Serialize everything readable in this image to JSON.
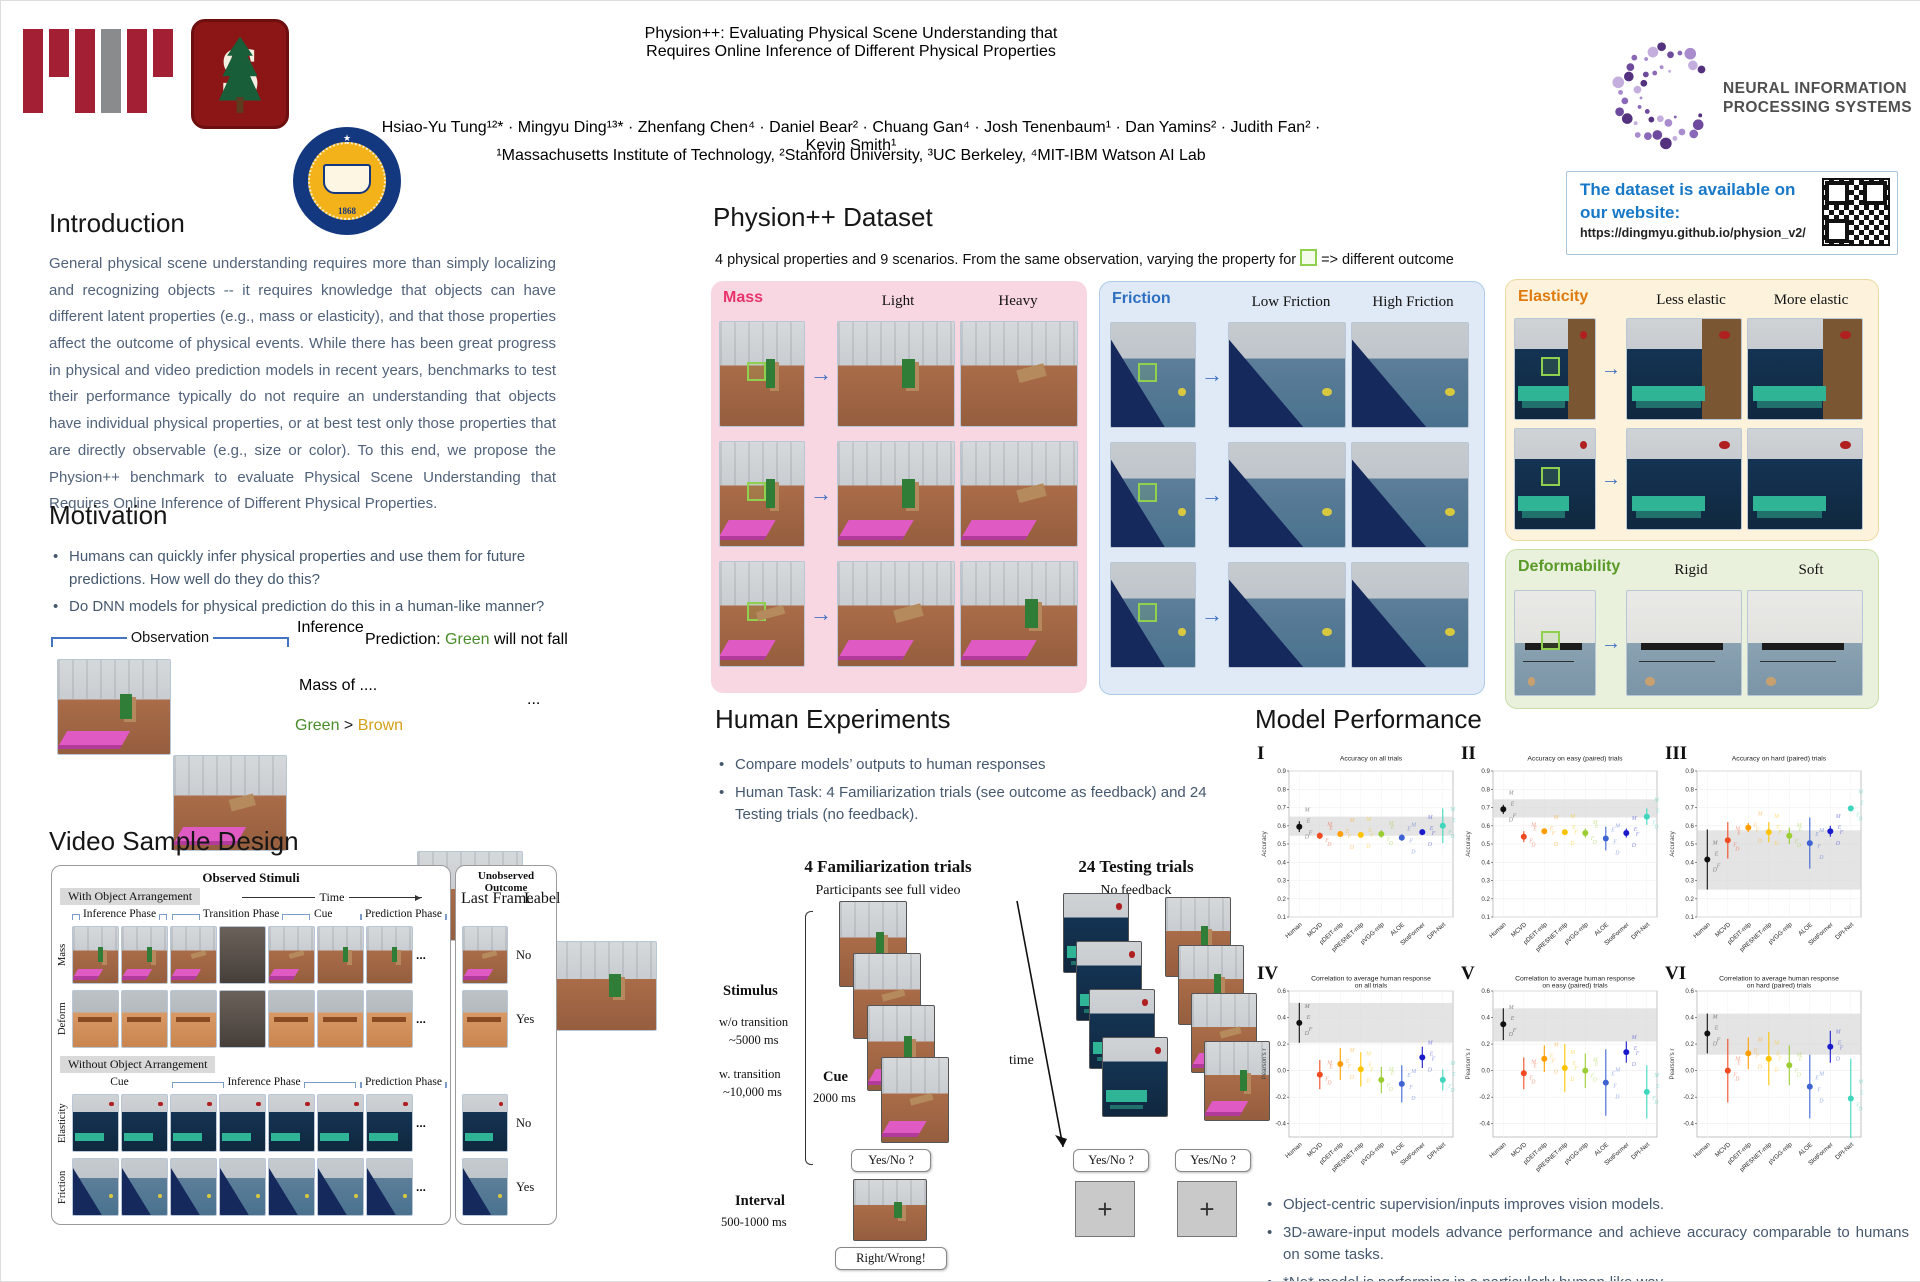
{
  "icons": {
    "arrow_right": "→",
    "star": "★"
  },
  "misc": {
    "ellipsis": "..."
  },
  "header": {
    "title_line1": "Physion++: Evaluating Physical Scene Understanding that",
    "title_line2": "Requires Online Inference of Different Physical Properties",
    "authors": "Hsiao-Yu Tung¹²* · Mingyu Ding¹³* · Zhenfang Chen⁴ · Daniel Bear² · Chuang Gan⁴ · Josh Tenenbaum¹ · Dan Yamins² · Judith Fan² · Kevin Smith¹",
    "affiliations": "¹Massachusetts Institute of Technology, ²Stanford University, ³UC Berkeley, ⁴MIT-IBM Watson AI Lab",
    "neurips_line1": "NEURAL INFORMATION",
    "neurips_line2": "PROCESSING SYSTEMS",
    "seal_year": "1868",
    "dataset_box": {
      "line1": "The dataset is available on our website:",
      "url": "https://dingmyu.github.io/physion_v2/"
    }
  },
  "intro": {
    "heading": "Introduction",
    "body": "General physical scene understanding requires more than simply localizing and recognizing objects -- it requires knowledge that objects can have different latent properties (e.g., mass or elasticity), and that those properties affect the outcome of physical events. While there has been great progress in physical and video prediction models in recent years, benchmarks to test their performance typically do not require an understanding that objects have individual physical properties, or at best test only those properties that are directly observable (e.g., size or color). To this end, we propose the Physion++ benchmark to evaluate Physical Scene Understanding that Requires Online Inference of Different Physical Properties."
  },
  "motivation": {
    "heading": "Motivation",
    "bullets": [
      "Humans can quickly infer physical properties and use them for future predictions. How well do they do this?",
      "Do DNN models for physical prediction do this in a human-like manner?"
    ],
    "diagram": {
      "observation": "Observation",
      "inference": "Inference",
      "mass_of": "Mass of ....",
      "green_word": "Green",
      "gt": ">",
      "brown_word": "Brown",
      "prediction_prefix": "Prediction:",
      "prediction_green": "Green",
      "prediction_suffix": "will not fall"
    }
  },
  "video_design": {
    "heading": "Video Sample Design",
    "observed": "Observed Stimuli",
    "time_label": "Time",
    "unobserved": "Unobserved Outcome",
    "last_frame": "Last Frame",
    "label_col": "Label",
    "with_arrangement": "With Object Arrangement",
    "without_arrangement": "Without Object Arrangement",
    "phases1": [
      "Inference Phase",
      "Transition Phase",
      "Cue",
      "Prediction Phase"
    ],
    "phases2": [
      "Cue",
      "Inference Phase",
      "Prediction Phase"
    ],
    "rows": [
      {
        "name": "Mass",
        "label": "No"
      },
      {
        "name": "Deform",
        "label": "Yes"
      },
      {
        "name": "Elasticity",
        "label": "No"
      },
      {
        "name": "Friction",
        "label": "Yes"
      }
    ]
  },
  "dataset": {
    "heading": "Physion++ Dataset",
    "caption_pre": "4 physical properties and 9 scenarios. From the same observation, varying the property for",
    "caption_post": "=> different outcome",
    "panels": [
      {
        "name": "Mass",
        "col1": "Light",
        "col2": "Heavy"
      },
      {
        "name": "Friction",
        "col1": "Low Friction",
        "col2": "High Friction"
      },
      {
        "name": "Elasticity",
        "col1": "Less elastic",
        "col2": "More elastic"
      },
      {
        "name": "Deformability",
        "col1": "Rigid",
        "col2": "Soft"
      }
    ]
  },
  "human": {
    "heading": "Human Experiments",
    "bullets": [
      "Compare models’ outputs to human responses",
      "Human Task: 4 Familiarization trials (see outcome as feedback) and 24 Testing trials (no feedback)."
    ],
    "diagram": {
      "fam_title": "4 Familiarization trials",
      "fam_sub": "Participants see full video",
      "test_title": "24 Testing trials",
      "test_sub": "No feedback",
      "stimulus": "Stimulus",
      "wo1": "w/o transition",
      "wo2": "~5000 ms",
      "w1": "w.  transition",
      "w2": "~10,000 ms",
      "cue": "Cue",
      "cue_ms": "2000 ms",
      "time": "time",
      "yesno": "Yes/No ?",
      "interval": "Interval",
      "interval_ms": "500-1000 ms",
      "rightwrong": "Right/Wrong!",
      "plus": "+"
    }
  },
  "model_perf": {
    "heading": "Model Performance",
    "models": [
      "Human",
      "MCVD",
      "pDEIT-mlp",
      "pRESNET-mlp",
      "pVGG-mlp",
      "ALOE",
      "SlotFormer",
      "DPI-Net"
    ],
    "colors": [
      "#101010",
      "#f04a22",
      "#ff9d00",
      "#ffc400",
      "#9acd32",
      "#3f63d2",
      "#1a1acd",
      "#3fd6bd"
    ],
    "scenario_letters": [
      "M",
      "E",
      "F",
      "D"
    ],
    "bullets": [
      "Object-centric supervision/inputs improves vision models.",
      "3D-aware-input models advance performance and achieve accuracy comparable to humans on some tasks.",
      "*No* model is performing in a particularly human-like way"
    ]
  },
  "chart_data": [
    {
      "type": "scatter",
      "numeral": "I",
      "title": "Accuracy on all trials",
      "ylabel": "Accuracy",
      "ylim": [
        0.1,
        0.9
      ],
      "yticks": [
        0.1,
        0.2,
        0.3,
        0.4,
        0.5,
        0.6,
        0.7,
        0.8,
        0.9
      ],
      "band": [
        0.545,
        0.65
      ],
      "categories": [
        "Human",
        "MCVD",
        "pDEIT-mlp",
        "pRESNET-mlp",
        "pVGG-mlp",
        "ALOE",
        "SlotFormer",
        "DPI-Net"
      ],
      "values": [
        0.595,
        0.545,
        0.555,
        0.55,
        0.555,
        0.535,
        0.565,
        0.6
      ],
      "errors": [
        0.03,
        0.018,
        0.012,
        0.015,
        0.02,
        0.018,
        0.015,
        0.095
      ]
    },
    {
      "type": "scatter",
      "numeral": "II",
      "title": "Accuracy on easy (paired) trials",
      "ylabel": "Accuracy",
      "ylim": [
        0.1,
        0.9
      ],
      "yticks": [
        0.1,
        0.2,
        0.3,
        0.4,
        0.5,
        0.6,
        0.7,
        0.8,
        0.9
      ],
      "band": [
        0.645,
        0.745
      ],
      "categories": [
        "Human",
        "MCVD",
        "pDEIT-mlp",
        "pRESNET-mlp",
        "pVGG-mlp",
        "ALOE",
        "SlotFormer",
        "DPI-Net"
      ],
      "values": [
        0.69,
        0.54,
        0.57,
        0.565,
        0.56,
        0.53,
        0.56,
        0.65
      ],
      "errors": [
        0.025,
        0.03,
        0.015,
        0.015,
        0.025,
        0.065,
        0.025,
        0.045
      ]
    },
    {
      "type": "scatter",
      "numeral": "III",
      "title": "Accuracy on hard (paired) trials",
      "ylabel": "Accuracy",
      "ylim": [
        0.1,
        0.9
      ],
      "yticks": [
        0.1,
        0.2,
        0.3,
        0.4,
        0.5,
        0.6,
        0.7,
        0.8,
        0.9
      ],
      "band": [
        0.25,
        0.575
      ],
      "categories": [
        "Human",
        "MCVD",
        "pDEIT-mlp",
        "pRESNET-mlp",
        "pVGG-mlp",
        "ALOE",
        "SlotFormer",
        "DPI-Net"
      ],
      "values": [
        0.415,
        0.52,
        0.59,
        0.565,
        0.545,
        0.505,
        0.57,
        0.695
      ],
      "errors": [
        0.165,
        0.1,
        0.025,
        0.055,
        0.045,
        0.14,
        0.03,
        0.015
      ]
    },
    {
      "type": "scatter",
      "numeral": "IV",
      "title": "Correlation to average human response\non all trials",
      "ylabel": "Pearson's r",
      "ylim": [
        -0.5,
        0.6
      ],
      "yticks": [
        -0.4,
        -0.2,
        0.0,
        0.2,
        0.4,
        0.6
      ],
      "band": [
        0.21,
        0.51
      ],
      "categories": [
        "Human",
        "MCVD",
        "pDEIT-mlp",
        "pRESNET-mlp",
        "pVGG-mlp",
        "ALOE",
        "SlotFormer",
        "DPI-Net"
      ],
      "values": [
        0.36,
        -0.03,
        0.05,
        0.01,
        -0.07,
        -0.1,
        0.1,
        -0.07
      ],
      "errors": [
        0.15,
        0.11,
        0.12,
        0.13,
        0.1,
        0.14,
        0.08,
        0.08
      ]
    },
    {
      "type": "scatter",
      "numeral": "V",
      "title": "Correlation to average human response\non easy (paired) trials",
      "ylabel": "Pearson's r",
      "ylim": [
        -0.5,
        0.6
      ],
      "yticks": [
        -0.4,
        -0.2,
        0.0,
        0.2,
        0.4,
        0.6
      ],
      "band": [
        0.22,
        0.47
      ],
      "categories": [
        "Human",
        "MCVD",
        "pDEIT-mlp",
        "pRESNET-mlp",
        "pVGG-mlp",
        "ALOE",
        "SlotFormer",
        "DPI-Net"
      ],
      "values": [
        0.35,
        -0.02,
        0.09,
        0.02,
        0.0,
        -0.09,
        0.14,
        -0.16
      ],
      "errors": [
        0.12,
        0.12,
        0.1,
        0.18,
        0.13,
        0.25,
        0.08,
        0.2
      ]
    },
    {
      "type": "scatter",
      "numeral": "VI",
      "title": "Correlation to average human response\non hard (paired) trials",
      "ylabel": "Pearson's r",
      "ylim": [
        -0.5,
        0.6
      ],
      "yticks": [
        -0.4,
        -0.2,
        0.0,
        0.2,
        0.4,
        0.6
      ],
      "band": [
        0.12,
        0.43
      ],
      "categories": [
        "Human",
        "MCVD",
        "pDEIT-mlp",
        "pRESNET-mlp",
        "pVGG-mlp",
        "ALOE",
        "SlotFormer",
        "DPI-Net"
      ],
      "values": [
        0.28,
        0.0,
        0.13,
        0.09,
        0.04,
        -0.12,
        0.18,
        -0.21
      ],
      "errors": [
        0.15,
        0.24,
        0.12,
        0.2,
        0.15,
        0.24,
        0.12,
        0.3
      ]
    }
  ]
}
